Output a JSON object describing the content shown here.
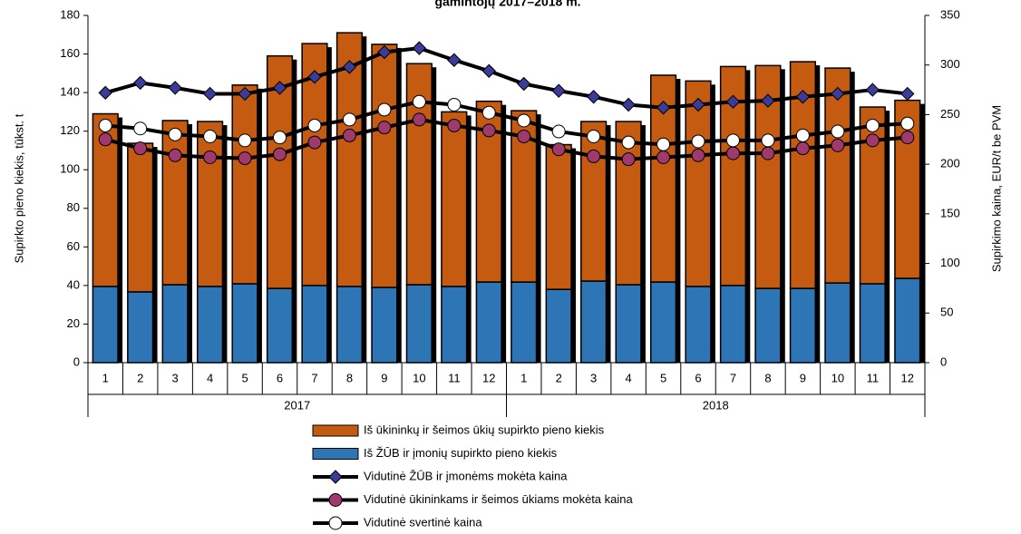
{
  "chart_data": {
    "type": "bar",
    "title": "gamintojų 2017–2018 m.",
    "y_label": "Supirkto pieno kiekis, tūkst. t",
    "y2_label": "Supirkimo kaina, EUR/t be PVM",
    "categories": [
      "1",
      "2",
      "3",
      "4",
      "5",
      "6",
      "7",
      "8",
      "9",
      "10",
      "11",
      "12",
      "1",
      "2",
      "3",
      "4",
      "5",
      "6",
      "7",
      "8",
      "9",
      "10",
      "11",
      "12"
    ],
    "category_groups": [
      "2017",
      "2018"
    ],
    "ylim": [
      0,
      180
    ],
    "yticks": [
      0,
      20,
      40,
      60,
      80,
      100,
      120,
      140,
      160,
      180
    ],
    "y2lim": [
      0,
      350
    ],
    "y2ticks": [
      0,
      50,
      100,
      150,
      200,
      250,
      300,
      350
    ],
    "series": [
      {
        "name": "Iš ūkininkų ir šeimos ūkių supirkto pieno kiekis",
        "type": "bar",
        "color": "#c55a11",
        "values": [
          89.5,
          77,
          85.1,
          85.5,
          103,
          120.5,
          125.4,
          131.5,
          126,
          114.6,
          90.5,
          93.7,
          88.8,
          75,
          82.7,
          84.6,
          107.2,
          106.5,
          113.5,
          115.5,
          117.5,
          111.4,
          91.6,
          92.3
        ]
      },
      {
        "name": "Iš ŽŪB ir įmonių supirkto pieno kiekis",
        "type": "bar",
        "color": "#2e75b6",
        "values": [
          39.5,
          36.7,
          40.4,
          39.5,
          40.9,
          38.5,
          40,
          39.5,
          39,
          40.4,
          39.5,
          41.8,
          41.8,
          38,
          42.3,
          40.4,
          41.8,
          39.5,
          40,
          38.5,
          38.5,
          41.3,
          40.9,
          43.7
        ]
      },
      {
        "name": "Vidutinė ŽŪB ir įmonėms mokėta kaina",
        "type": "line",
        "axis": "y2",
        "color": "#000000",
        "marker": "diamond",
        "marker_color": "#3b3b98",
        "values": [
          272,
          282,
          277,
          271,
          271,
          277,
          288,
          298,
          313,
          317,
          305,
          294,
          281,
          274,
          268,
          260,
          257,
          260,
          263,
          264,
          268,
          271,
          275,
          271
        ]
      },
      {
        "name": "Vidutinė ūkininkams ir šeimos ūkiams mokėta kaina",
        "type": "line",
        "axis": "y2",
        "color": "#000000",
        "marker": "circle",
        "marker_color": "#9e3a6e",
        "values": [
          225,
          216,
          209,
          207,
          206,
          210,
          222,
          229,
          237,
          245,
          239,
          234,
          228,
          215,
          208,
          205,
          207,
          209,
          211,
          211,
          216,
          219,
          224,
          227
        ]
      },
      {
        "name": "Vidutinė svertinė kaina",
        "type": "line",
        "axis": "y2",
        "color": "#000000",
        "marker": "circle",
        "marker_color": "#ffffff",
        "values": [
          239,
          236,
          230,
          228,
          224,
          227,
          239,
          245,
          255,
          263,
          260,
          252,
          244,
          233,
          228,
          222,
          220,
          223,
          224,
          224,
          229,
          233,
          239,
          241
        ]
      }
    ]
  }
}
